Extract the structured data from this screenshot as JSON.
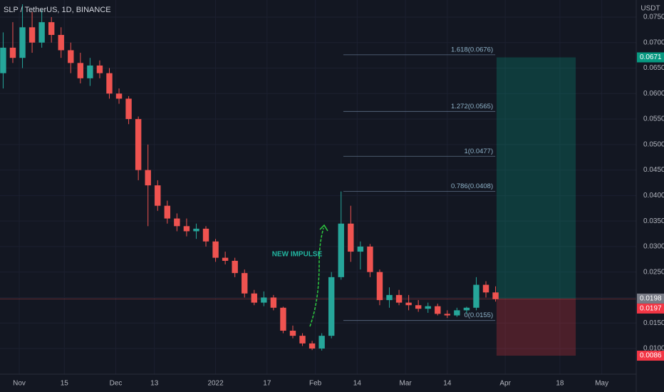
{
  "chart_data": {
    "type": "candlestick",
    "title": "SLP / TetherUS, 1D, BINANCE",
    "y_axis_label": "USDT",
    "annotation": "NEW IMPULSE",
    "up_color": "#26a69a",
    "down_color": "#ef5350",
    "grid": true,
    "x": [
      -5,
      -2,
      1,
      4,
      7,
      10,
      13,
      16,
      19,
      22,
      25,
      28,
      31,
      34,
      37,
      40,
      43,
      46,
      49,
      52,
      55,
      58,
      61,
      64,
      67,
      70,
      73,
      76,
      79,
      82,
      85,
      88,
      91,
      94,
      97,
      100,
      103,
      106,
      109,
      112,
      115,
      118,
      121,
      124,
      127,
      130,
      133,
      136,
      139,
      142,
      145,
      148
    ],
    "open": [
      0.064,
      0.069,
      0.067,
      0.073,
      0.07,
      0.074,
      0.0715,
      0.0685,
      0.066,
      0.063,
      0.0655,
      0.064,
      0.06,
      0.059,
      0.055,
      0.045,
      0.042,
      0.038,
      0.0355,
      0.034,
      0.033,
      0.0335,
      0.031,
      0.0278,
      0.0272,
      0.0248,
      0.0208,
      0.019,
      0.02,
      0.018,
      0.0135,
      0.0125,
      0.011,
      0.01,
      0.0125,
      0.024,
      0.0345,
      0.029,
      0.03,
      0.025,
      0.0195,
      0.0205,
      0.019,
      0.0185,
      0.0178,
      0.0183,
      0.0168,
      0.0165,
      0.0175,
      0.018,
      0.0225,
      0.021
    ],
    "high": [
      0.072,
      0.074,
      0.0775,
      0.076,
      0.0765,
      0.075,
      0.073,
      0.07,
      0.068,
      0.067,
      0.0665,
      0.065,
      0.061,
      0.0595,
      0.0555,
      0.05,
      0.043,
      0.039,
      0.0365,
      0.0355,
      0.0345,
      0.034,
      0.0315,
      0.029,
      0.0278,
      0.0255,
      0.0215,
      0.0212,
      0.0205,
      0.0182,
      0.0145,
      0.013,
      0.0115,
      0.013,
      0.025,
      0.0408,
      0.038,
      0.031,
      0.0305,
      0.0255,
      0.022,
      0.0215,
      0.0205,
      0.0195,
      0.019,
      0.0188,
      0.0175,
      0.018,
      0.0182,
      0.024,
      0.0232,
      0.0222
    ],
    "low": [
      0.061,
      0.066,
      0.065,
      0.068,
      0.069,
      0.07,
      0.067,
      0.064,
      0.062,
      0.0615,
      0.063,
      0.059,
      0.058,
      0.054,
      0.043,
      0.034,
      0.037,
      0.0345,
      0.033,
      0.032,
      0.0315,
      0.03,
      0.027,
      0.0265,
      0.024,
      0.02,
      0.0185,
      0.0183,
      0.0175,
      0.013,
      0.012,
      0.0105,
      0.0097,
      0.0096,
      0.012,
      0.0235,
      0.027,
      0.0255,
      0.024,
      0.0185,
      0.018,
      0.0185,
      0.0175,
      0.0172,
      0.017,
      0.0165,
      0.016,
      0.0162,
      0.0168,
      0.0175,
      0.02,
      0.0192
    ],
    "close": [
      0.069,
      0.067,
      0.073,
      0.07,
      0.074,
      0.0715,
      0.0685,
      0.066,
      0.063,
      0.0655,
      0.064,
      0.06,
      0.059,
      0.055,
      0.045,
      0.042,
      0.038,
      0.0355,
      0.034,
      0.033,
      0.0335,
      0.031,
      0.0278,
      0.0272,
      0.0248,
      0.0208,
      0.019,
      0.02,
      0.018,
      0.0135,
      0.0125,
      0.011,
      0.01,
      0.0125,
      0.024,
      0.0345,
      0.029,
      0.03,
      0.025,
      0.0195,
      0.0205,
      0.019,
      0.0185,
      0.0178,
      0.0183,
      0.0168,
      0.0165,
      0.0175,
      0.018,
      0.0225,
      0.021,
      0.0197
    ],
    "xlim": [
      -5.98,
      191.7
    ],
    "ylim": [
      0.00497,
      0.07835
    ],
    "xticks": [
      {
        "value": 0,
        "label": "Nov"
      },
      {
        "value": 14,
        "label": "15"
      },
      {
        "value": 30,
        "label": "Dec"
      },
      {
        "value": 42,
        "label": "13"
      },
      {
        "value": 61,
        "label": "2022"
      },
      {
        "value": 77,
        "label": "17"
      },
      {
        "value": 92,
        "label": "Feb"
      },
      {
        "value": 105,
        "label": "14"
      },
      {
        "value": 120,
        "label": "Mar"
      },
      {
        "value": 133,
        "label": "14"
      },
      {
        "value": 151,
        "label": "Apr"
      },
      {
        "value": 168,
        "label": "18"
      },
      {
        "value": 181,
        "label": "May"
      }
    ],
    "yticks": [
      {
        "value": 0.01,
        "label": "0.0100"
      },
      {
        "value": 0.015,
        "label": "0.0150"
      },
      {
        "value": 0.02,
        "label": "0.0200"
      },
      {
        "value": 0.025,
        "label": "0.0250"
      },
      {
        "value": 0.03,
        "label": "0.0300"
      },
      {
        "value": 0.035,
        "label": "0.0350"
      },
      {
        "value": 0.04,
        "label": "0.0400"
      },
      {
        "value": 0.045,
        "label": "0.0450"
      },
      {
        "value": 0.05,
        "label": "0.0500"
      },
      {
        "value": 0.055,
        "label": "0.0550"
      },
      {
        "value": 0.06,
        "label": "0.0600"
      },
      {
        "value": 0.065,
        "label": "0.0650"
      },
      {
        "value": 0.07,
        "label": "0.0700"
      },
      {
        "value": 0.075,
        "label": "0.0750"
      }
    ],
    "fib_x": [
      100.7,
      147.9
    ],
    "fib_levels": [
      {
        "value": 0.0155,
        "label": "0(0.0155)"
      },
      {
        "value": 0.0408,
        "label": "0.786(0.0408)"
      },
      {
        "value": 0.0477,
        "label": "1(0.0477)"
      },
      {
        "value": 0.0565,
        "label": "1.272(0.0565)"
      },
      {
        "value": 0.0676,
        "label": "1.618(0.0676)"
      }
    ],
    "position": {
      "x": [
        148.3,
        172.9
      ],
      "target": 0.0671,
      "entry": 0.0198,
      "stop": 0.0086
    },
    "price_line": 0.0197,
    "price_labels": [
      {
        "value": 0.0671,
        "label": "0.0671",
        "color": "#089981"
      },
      {
        "value": 0.0198,
        "label": "0.0198",
        "color": "#787b86"
      },
      {
        "value": 0.0197,
        "label": "0.0197",
        "color": "#f23645"
      },
      {
        "value": 0.0086,
        "label": "0.0086",
        "color": "#f23645"
      }
    ]
  }
}
